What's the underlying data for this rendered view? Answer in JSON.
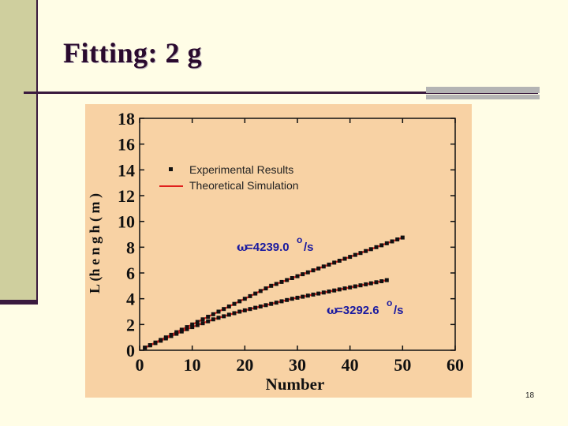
{
  "slide": {
    "title": "Fitting: 2 g",
    "page_number": "18"
  },
  "chart_data": {
    "type": "scatter",
    "title": "",
    "xlabel": "Number",
    "ylabel": "L (h e n g h ( m )",
    "xlim": [
      0,
      60
    ],
    "ylim": [
      0,
      18
    ],
    "x_ticks": [
      "0",
      "10",
      "20",
      "30",
      "40",
      "50",
      "60"
    ],
    "y_ticks": [
      "0",
      "2",
      "4",
      "6",
      "8",
      "10",
      "12",
      "14",
      "16",
      "18"
    ],
    "legend": {
      "placement": "top-left",
      "entries": [
        "Experimental Results",
        "Theoretical Simulation"
      ]
    },
    "annotations": [
      {
        "text_omega": "ω",
        "text_value": "=4239.0",
        "text_unit": "/s",
        "text_sup": "o"
      },
      {
        "text_omega": "ω",
        "text_value": "=3292.6",
        "text_unit": "/s",
        "text_sup": "o"
      }
    ],
    "colors": {
      "background": "#f8d2a4",
      "points": "#111111",
      "simulation": "#e0201c",
      "annotation": "#1a1aa0"
    },
    "series": [
      {
        "marker": "square",
        "x": [
          1,
          2,
          3,
          4,
          5,
          6,
          7,
          8,
          9,
          10,
          11,
          12,
          13,
          14,
          15,
          16,
          17,
          18,
          19,
          20,
          21,
          22,
          23,
          24,
          25,
          26,
          27,
          28,
          29,
          30,
          31,
          32,
          33,
          34,
          35,
          36,
          37,
          38,
          39,
          40,
          41,
          42,
          43,
          44,
          45,
          46,
          47,
          48,
          49,
          50
        ],
        "y": [
          0.2,
          0.4,
          0.6,
          0.8,
          1.0,
          1.2,
          1.4,
          1.6,
          1.8,
          2.0,
          2.2,
          2.4,
          2.6,
          2.8,
          3.0,
          3.2,
          3.4,
          3.6,
          3.8,
          4.0,
          4.2,
          4.4,
          4.6,
          4.8,
          5.0,
          5.15,
          5.3,
          5.45,
          5.6,
          5.75,
          5.9,
          6.05,
          6.2,
          6.35,
          6.5,
          6.65,
          6.8,
          6.95,
          7.1,
          7.25,
          7.4,
          7.55,
          7.7,
          7.85,
          8.0,
          8.15,
          8.3,
          8.45,
          8.6,
          8.75
        ]
      },
      {
        "marker": "square",
        "x": [
          1,
          2,
          3,
          4,
          5,
          6,
          7,
          8,
          9,
          10,
          11,
          12,
          13,
          14,
          15,
          16,
          17,
          18,
          19,
          20,
          21,
          22,
          23,
          24,
          25,
          26,
          27,
          28,
          29,
          30,
          31,
          32,
          33,
          34,
          35,
          36,
          37,
          38,
          39,
          40,
          41,
          42,
          43,
          44,
          45,
          46,
          47
        ],
        "y": [
          0.2,
          0.38,
          0.56,
          0.74,
          0.92,
          1.1,
          1.28,
          1.46,
          1.64,
          1.8,
          1.95,
          2.1,
          2.25,
          2.4,
          2.52,
          2.64,
          2.76,
          2.88,
          3.0,
          3.1,
          3.2,
          3.3,
          3.4,
          3.5,
          3.6,
          3.7,
          3.8,
          3.9,
          4.0,
          4.08,
          4.16,
          4.24,
          4.32,
          4.4,
          4.48,
          4.56,
          4.64,
          4.72,
          4.8,
          4.88,
          4.96,
          5.04,
          5.12,
          5.2,
          5.28,
          5.36,
          5.44
        ]
      }
    ]
  }
}
